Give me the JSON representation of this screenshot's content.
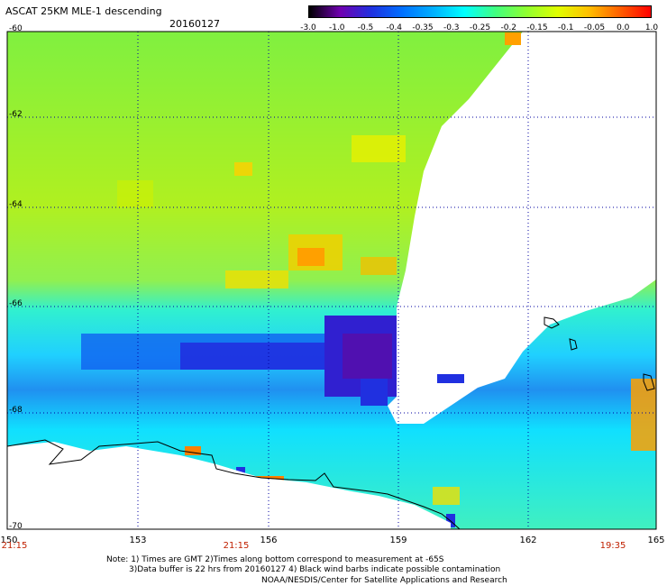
{
  "header": {
    "title": "ASCAT 25KM MLE-1 descending",
    "date": "20160127"
  },
  "colorbar": {
    "labels": [
      "-3.0",
      "-1.0",
      "-0.5",
      "-0.4",
      "-0.35",
      "-0.3",
      "-0.25",
      "-0.2",
      "-0.15",
      "-0.1",
      "-0.05",
      "0.0",
      "1.0"
    ],
    "colors": [
      "#000000",
      "#7000b0",
      "#2030e0",
      "#0070ff",
      "#00b0ff",
      "#00ffff",
      "#40ff80",
      "#90ff30",
      "#e0ff00",
      "#ffc000",
      "#ff6000",
      "#ff0000"
    ]
  },
  "map": {
    "lat_labels": [
      "-60",
      "-62",
      "-64",
      "-66",
      "-68",
      "-70"
    ],
    "lon_labels": [
      "150",
      "153",
      "156",
      "159",
      "162",
      "165"
    ],
    "times": [
      "21:15",
      "21:15",
      "19:35"
    ]
  },
  "footer": {
    "note_line1": "Note: 1) Times are GMT 2)Times along bottom correspond to measurement at -65S",
    "note_line2": "3)Data buffer is 22 hrs from 20160127 4) Black wind barbs indicate possible contamination",
    "credit": "NOAA/NESDIS/Center for Satellite Applications and Research"
  }
}
